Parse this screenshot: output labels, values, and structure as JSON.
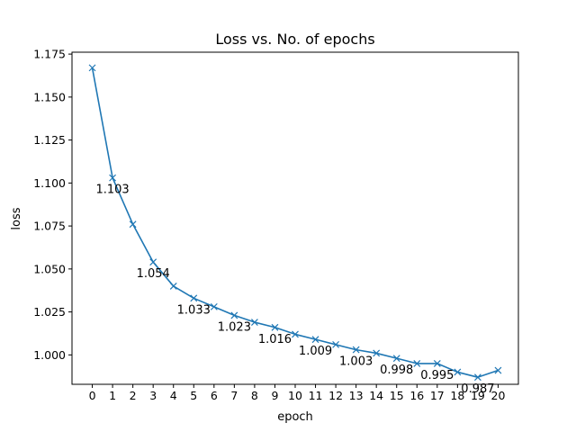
{
  "chart_data": {
    "type": "line",
    "title": "Loss vs. No. of epochs",
    "xlabel": "epoch",
    "ylabel": "loss",
    "x": [
      0,
      1,
      2,
      3,
      4,
      5,
      6,
      7,
      8,
      9,
      10,
      11,
      12,
      13,
      14,
      15,
      16,
      17,
      18,
      19,
      20
    ],
    "series": [
      {
        "name": "",
        "color": "#1f77b4",
        "marker": "x",
        "values": [
          1.167,
          1.103,
          1.076,
          1.054,
          1.04,
          1.033,
          1.028,
          1.023,
          1.019,
          1.016,
          1.012,
          1.009,
          1.006,
          1.003,
          1.001,
          0.998,
          0.995,
          0.995,
          0.99,
          0.987,
          0.991
        ]
      }
    ],
    "annotations": [
      {
        "x": 1,
        "y": 1.103,
        "text": "1.103"
      },
      {
        "x": 3,
        "y": 1.054,
        "text": "1.054"
      },
      {
        "x": 5,
        "y": 1.033,
        "text": "1.033"
      },
      {
        "x": 7,
        "y": 1.023,
        "text": "1.023"
      },
      {
        "x": 9,
        "y": 1.016,
        "text": "1.016"
      },
      {
        "x": 11,
        "y": 1.009,
        "text": "1.009"
      },
      {
        "x": 13,
        "y": 1.003,
        "text": "1.003"
      },
      {
        "x": 15,
        "y": 0.998,
        "text": "0.998"
      },
      {
        "x": 17,
        "y": 0.995,
        "text": "0.995"
      },
      {
        "x": 19,
        "y": 0.987,
        "text": "0.987"
      }
    ],
    "xticks": [
      "0",
      "1",
      "2",
      "3",
      "4",
      "5",
      "6",
      "7",
      "8",
      "9",
      "10",
      "11",
      "12",
      "13",
      "14",
      "15",
      "16",
      "17",
      "18",
      "19",
      "20"
    ],
    "yticks": [
      {
        "value": 1.0,
        "label": "1.000"
      },
      {
        "value": 1.025,
        "label": "1.025"
      },
      {
        "value": 1.05,
        "label": "1.050"
      },
      {
        "value": 1.075,
        "label": "1.075"
      },
      {
        "value": 1.1,
        "label": "1.100"
      },
      {
        "value": 1.125,
        "label": "1.125"
      },
      {
        "value": 1.15,
        "label": "1.150"
      },
      {
        "value": 1.175,
        "label": "1.175"
      }
    ],
    "xlim": [
      -1,
      21
    ],
    "ylim": [
      0.9829,
      1.1761
    ],
    "grid": false,
    "legend": "none"
  }
}
